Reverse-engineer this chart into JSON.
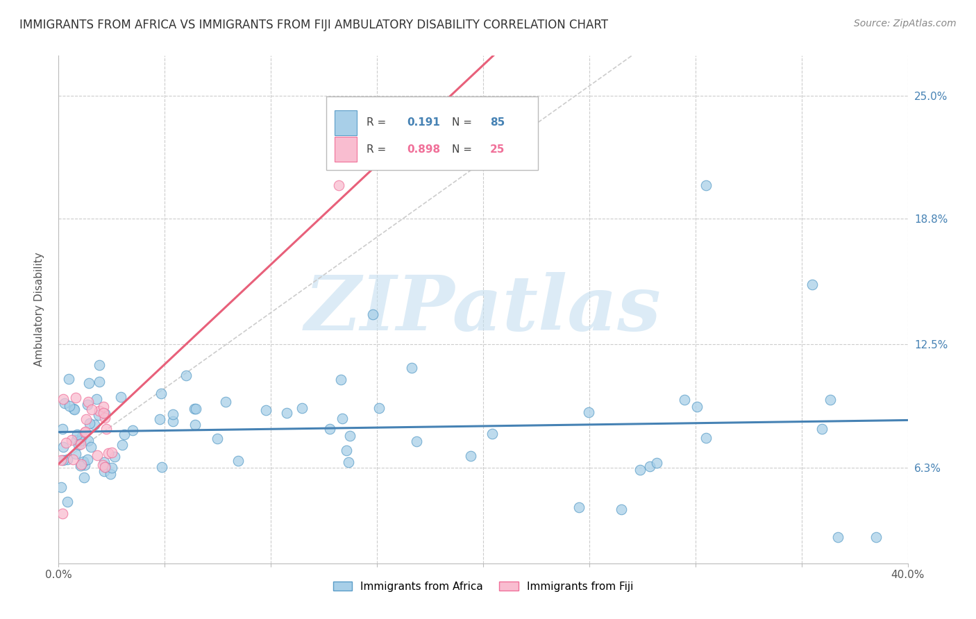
{
  "title": "IMMIGRANTS FROM AFRICA VS IMMIGRANTS FROM FIJI AMBULATORY DISABILITY CORRELATION CHART",
  "source": "Source: ZipAtlas.com",
  "ylabel": "Ambulatory Disability",
  "xlim": [
    0.0,
    0.4
  ],
  "ylim": [
    0.015,
    0.27
  ],
  "xtick_positions": [
    0.0,
    0.05,
    0.1,
    0.15,
    0.2,
    0.25,
    0.3,
    0.35,
    0.4
  ],
  "xticklabels": [
    "0.0%",
    "",
    "",
    "",
    "",
    "",
    "",
    "",
    "40.0%"
  ],
  "ytick_positions": [
    0.063,
    0.125,
    0.188,
    0.25
  ],
  "ytick_labels": [
    "6.3%",
    "12.5%",
    "18.8%",
    "25.0%"
  ],
  "watermark_text": "ZIPatlas",
  "africa_color": "#a8cfe8",
  "africa_edge": "#5a9dc8",
  "fiji_color": "#f9bdd0",
  "fiji_edge": "#f07099",
  "africa_R": 0.191,
  "africa_N": 85,
  "fiji_R": 0.898,
  "fiji_N": 25,
  "africa_line_color": "#4682b4",
  "fiji_line_color": "#e8607a",
  "diagonal_color": "#cccccc",
  "background": "#ffffff",
  "grid_color": "#cccccc",
  "title_color": "#333333",
  "ytick_color": "#4682b4",
  "legend_label_africa": "Immigrants from Africa",
  "legend_label_fiji": "Immigrants from Fiji"
}
